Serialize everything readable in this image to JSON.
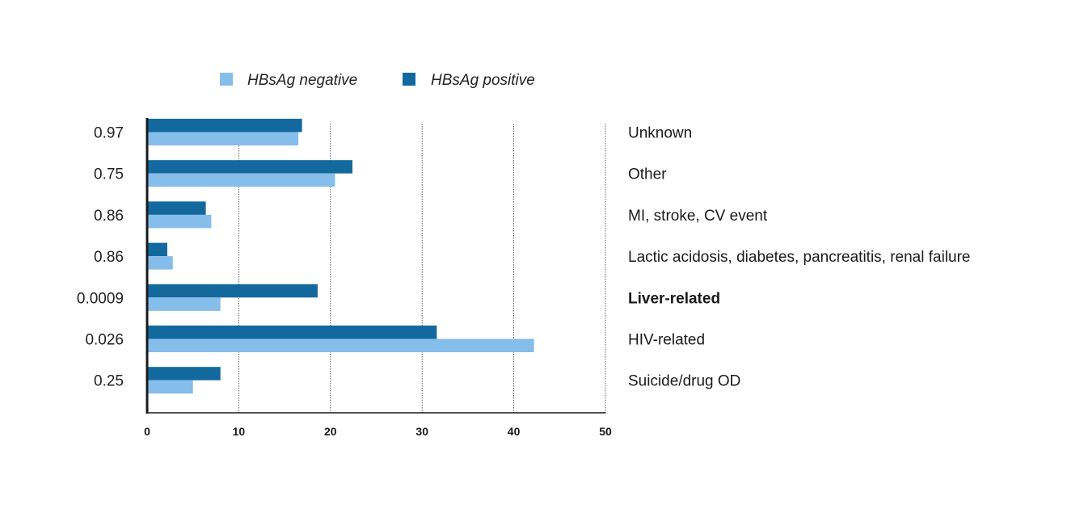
{
  "chart_data": {
    "type": "bar",
    "orientation": "horizontal",
    "categories": [
      "Unknown",
      "Other",
      "MI, stroke, CV event",
      "Lactic acidosis, diabetes, pancreatitis, renal failure",
      "Liver-related",
      "HIV-related",
      "Suicide/drug OD"
    ],
    "bold_category": "Liver-related",
    "p_values": [
      "0.97",
      "0.75",
      "0.86",
      "0.86",
      "0.0009",
      "0.026",
      "0.25"
    ],
    "series": [
      {
        "name": "HBsAg negative",
        "color": "#85bdeb",
        "values": [
          16.5,
          20.5,
          7.0,
          2.8,
          8.0,
          42.2,
          5.0
        ]
      },
      {
        "name": "HBsAg positive",
        "color": "#13699e",
        "values": [
          16.9,
          22.4,
          6.4,
          2.2,
          18.6,
          31.6,
          8.0
        ]
      }
    ],
    "xlim": [
      0,
      50
    ],
    "xticks": [
      "0",
      "10",
      "20",
      "30",
      "40",
      "50"
    ],
    "grid": "vertical",
    "legend_position": "top"
  }
}
